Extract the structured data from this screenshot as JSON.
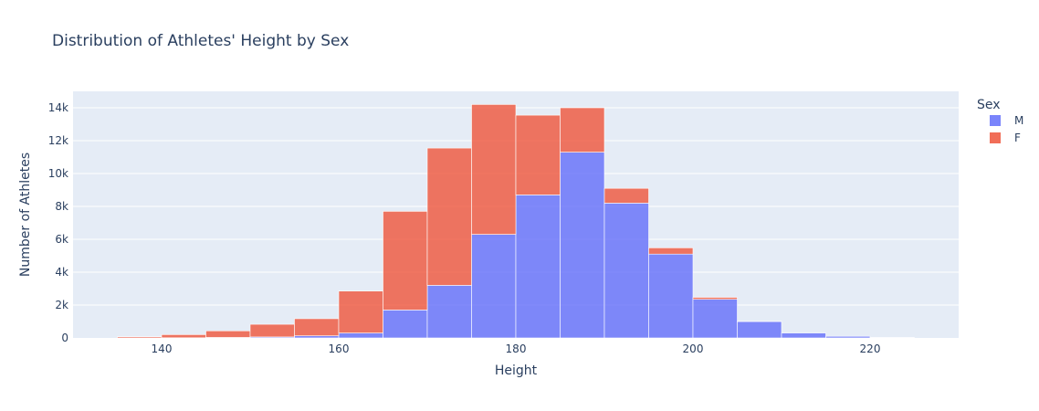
{
  "chart_data": {
    "type": "bar",
    "stacked": true,
    "title": "Distribution of Athletes' Height by Sex",
    "xlabel": "Height",
    "ylabel": "Number of Athletes",
    "bin_edges": [
      135,
      140,
      145,
      150,
      155,
      160,
      165,
      170,
      175,
      180,
      185,
      190,
      195,
      200,
      205,
      210,
      215,
      220,
      225
    ],
    "series": [
      {
        "name": "M",
        "color": "#636efa",
        "values": [
          0,
          10,
          30,
          60,
          130,
          300,
          1700,
          3200,
          6300,
          8700,
          11300,
          8200,
          5100,
          2350,
          1000,
          300,
          100,
          30
        ]
      },
      {
        "name": "F",
        "color": "#ef553b",
        "values": [
          70,
          190,
          400,
          770,
          1040,
          2550,
          6000,
          8350,
          7900,
          4850,
          2700,
          900,
          380,
          120,
          10,
          0,
          0,
          0
        ]
      }
    ],
    "xlim": [
      130,
      230
    ],
    "ylim": [
      0,
      15000
    ],
    "xticks": [
      140,
      160,
      180,
      200,
      220
    ],
    "xtick_labels": [
      "140",
      "160",
      "180",
      "200",
      "220"
    ],
    "yticks": [
      0,
      2000,
      4000,
      6000,
      8000,
      10000,
      12000,
      14000
    ],
    "ytick_labels": [
      "0",
      "2k",
      "4k",
      "6k",
      "8k",
      "10k",
      "12k",
      "14k"
    ],
    "legend": {
      "title": "Sex",
      "position": "right"
    },
    "grid": true,
    "colors": {
      "plot_bg": "#e5ecf6",
      "grid": "#ffffff",
      "text": "#2a3f5f"
    }
  }
}
